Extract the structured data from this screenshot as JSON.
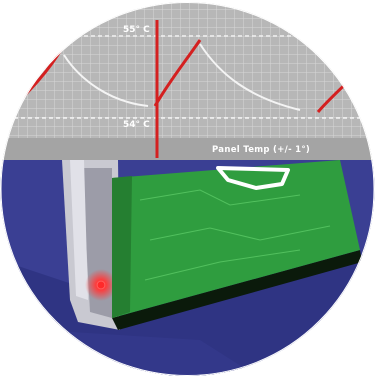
{
  "chart_data": {
    "type": "line",
    "y_ticks": [
      "55° C",
      "54° C"
    ],
    "caption": "Panel Temp (+/- 1°)",
    "series_color": "#d42020",
    "reference_color": "#f4f4f4",
    "grid": true
  },
  "colors": {
    "grid_bg": "#b7b7b7",
    "grid_line": "#d7d7d7",
    "caption_band": "#a4a4a4",
    "enclosure_bg": "#3a3f93",
    "panel_frame": "#c9c9d1",
    "circuit_board": "#2f9d3f",
    "status_led": "#ff2a2a"
  },
  "icons": [
    "status-led-icon",
    "circuit-board-icon"
  ]
}
